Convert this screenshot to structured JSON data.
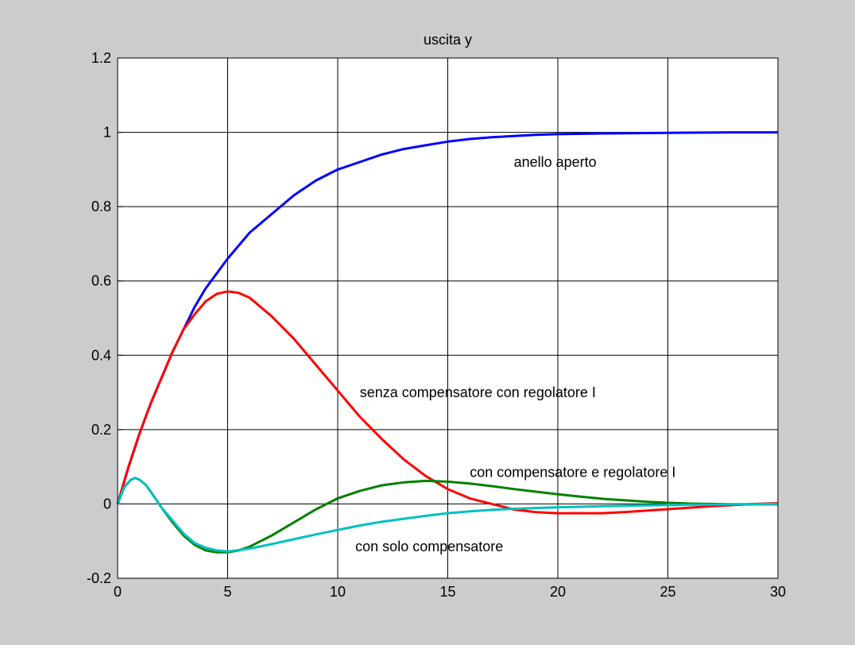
{
  "chart_data": {
    "type": "line",
    "title": "uscita y",
    "xlabel": "",
    "ylabel": "",
    "xlim": [
      0,
      30
    ],
    "ylim": [
      -0.2,
      1.2
    ],
    "xticks": [
      0,
      5,
      10,
      15,
      20,
      25,
      30
    ],
    "yticks": [
      -0.2,
      0,
      0.2,
      0.4,
      0.6,
      0.8,
      1,
      1.2
    ],
    "xtick_labels": [
      "0",
      "5",
      "10",
      "15",
      "20",
      "25",
      "30"
    ],
    "ytick_labels": [
      "-0.2",
      "0",
      "0.2",
      "0.4",
      "0.6",
      "0.8",
      "1",
      "1.2"
    ],
    "grid": true,
    "background": "#cccccc",
    "plot_background": "#ffffff",
    "series": [
      {
        "color": "#0000ff",
        "x": [
          0,
          0.5,
          1,
          1.5,
          2,
          2.5,
          3,
          3.5,
          4,
          5,
          6,
          7,
          8,
          9,
          10,
          11,
          12,
          13,
          14,
          15,
          16,
          17,
          18,
          19,
          20,
          22,
          24,
          26,
          28,
          30
        ],
        "y": [
          0,
          0.1,
          0.19,
          0.27,
          0.34,
          0.41,
          0.47,
          0.53,
          0.58,
          0.66,
          0.73,
          0.78,
          0.83,
          0.87,
          0.9,
          0.92,
          0.94,
          0.955,
          0.965,
          0.975,
          0.982,
          0.987,
          0.99,
          0.993,
          0.995,
          0.997,
          0.998,
          0.999,
          1.0,
          1.0
        ]
      },
      {
        "color": "#ff0000",
        "x": [
          0,
          0.5,
          1,
          1.5,
          2,
          2.5,
          3,
          3.5,
          4,
          4.5,
          5,
          5.5,
          6,
          7,
          8,
          9,
          10,
          11,
          12,
          13,
          14,
          15,
          16,
          17,
          18,
          19,
          20,
          21,
          22,
          23,
          24,
          25,
          26,
          27,
          28,
          29,
          30
        ],
        "y": [
          0,
          0.1,
          0.19,
          0.27,
          0.34,
          0.41,
          0.47,
          0.51,
          0.545,
          0.565,
          0.572,
          0.568,
          0.555,
          0.505,
          0.445,
          0.375,
          0.305,
          0.235,
          0.175,
          0.12,
          0.075,
          0.04,
          0.015,
          0.0,
          -0.015,
          -0.022,
          -0.025,
          -0.025,
          -0.025,
          -0.022,
          -0.018,
          -0.014,
          -0.01,
          -0.006,
          -0.003,
          0.0,
          0.002
        ]
      },
      {
        "color": "#008000",
        "x": [
          0,
          0.3,
          0.6,
          0.8,
          1.0,
          1.3,
          1.6,
          2.0,
          2.5,
          3.0,
          3.5,
          4.0,
          4.5,
          5.0,
          5.5,
          6.0,
          7.0,
          8.0,
          9.0,
          10.0,
          11.0,
          12.0,
          13.0,
          14.0,
          15.0,
          16.0,
          17.0,
          18.0,
          19.0,
          20.0,
          21.0,
          22.0,
          23.0,
          24.0,
          25.0,
          26.0,
          27.0,
          28.0,
          29.0,
          30.0
        ],
        "y": [
          0,
          0.045,
          0.065,
          0.07,
          0.065,
          0.05,
          0.025,
          -0.01,
          -0.05,
          -0.085,
          -0.11,
          -0.125,
          -0.13,
          -0.13,
          -0.125,
          -0.115,
          -0.085,
          -0.05,
          -0.015,
          0.015,
          0.035,
          0.05,
          0.058,
          0.062,
          0.06,
          0.055,
          0.048,
          0.04,
          0.033,
          0.026,
          0.02,
          0.014,
          0.01,
          0.006,
          0.003,
          0.001,
          0.0,
          -0.001,
          -0.001,
          -0.001
        ]
      },
      {
        "color": "#00c0c0",
        "x": [
          0,
          0.3,
          0.6,
          0.8,
          1.0,
          1.3,
          1.6,
          2.0,
          2.5,
          3.0,
          3.5,
          4.0,
          4.5,
          5.0,
          6.0,
          7.0,
          8.0,
          9.0,
          10.0,
          11.0,
          12.0,
          13.0,
          14.0,
          15.0,
          16.0,
          17.0,
          18.0,
          19.0,
          20.0,
          22.0,
          24.0,
          26.0,
          28.0,
          30.0
        ],
        "y": [
          0,
          0.045,
          0.065,
          0.07,
          0.065,
          0.05,
          0.025,
          -0.01,
          -0.045,
          -0.08,
          -0.105,
          -0.118,
          -0.125,
          -0.128,
          -0.12,
          -0.108,
          -0.095,
          -0.082,
          -0.07,
          -0.058,
          -0.048,
          -0.04,
          -0.032,
          -0.025,
          -0.02,
          -0.016,
          -0.013,
          -0.011,
          -0.009,
          -0.006,
          -0.004,
          -0.002,
          -0.001,
          0.0
        ]
      }
    ],
    "annotations": [
      {
        "text": "anello aperto",
        "x": 18.0,
        "y": 0.92
      },
      {
        "text": "senza compensatore con regolatore I",
        "x": 11.0,
        "y": 0.3
      },
      {
        "text": "con compensatore e regolatore I",
        "x": 16.0,
        "y": 0.085
      },
      {
        "text": "con solo compensatore",
        "x": 10.8,
        "y": -0.115
      }
    ]
  }
}
